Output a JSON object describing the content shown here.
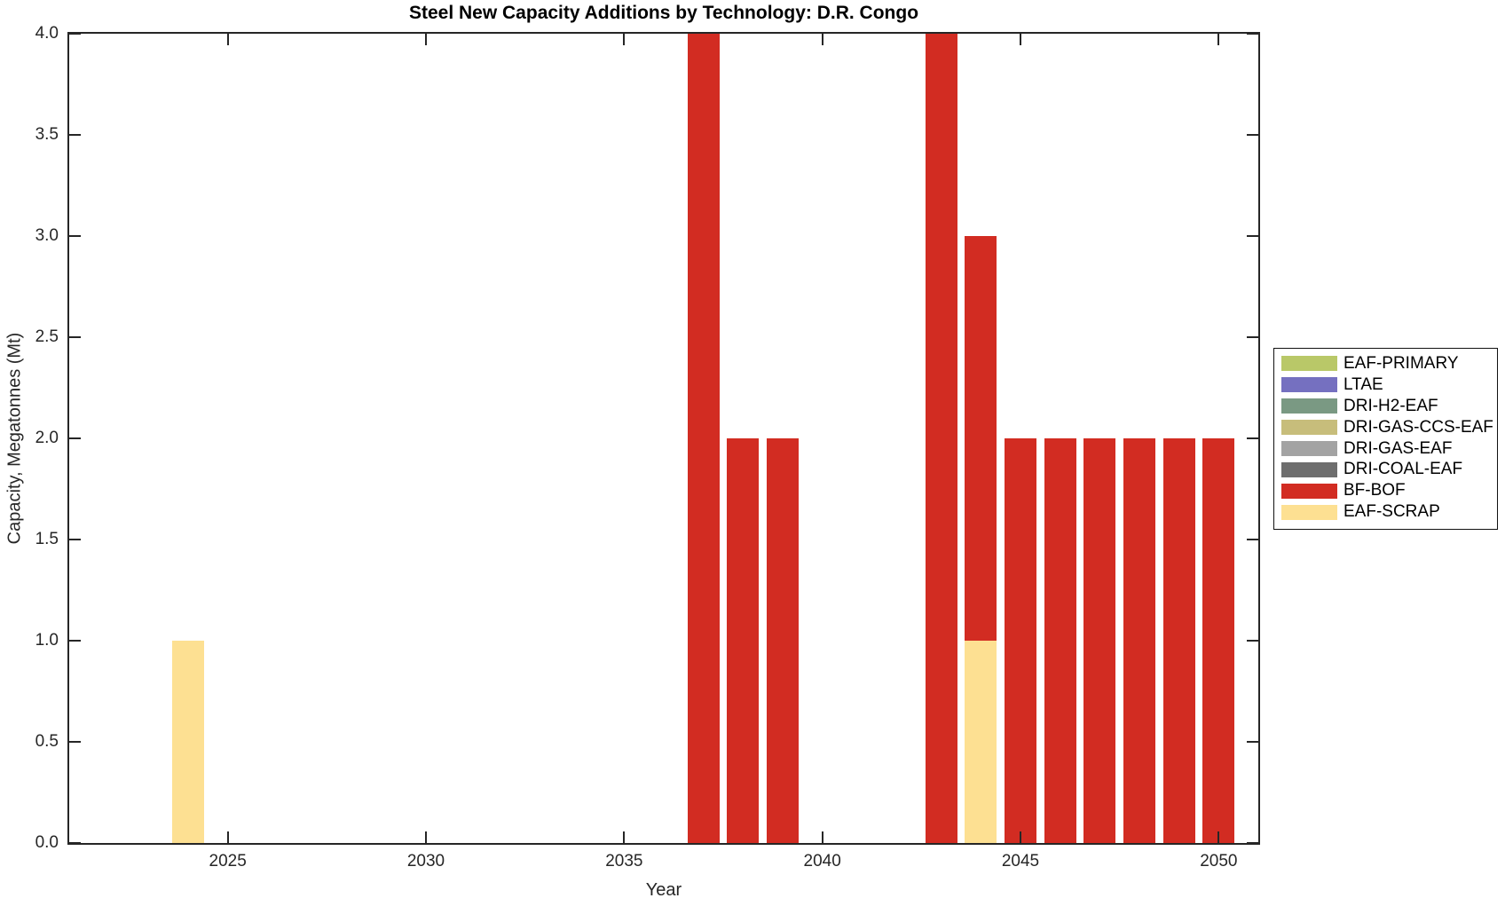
{
  "chart_data": {
    "type": "bar",
    "stacked": true,
    "title": "Steel New Capacity Additions by Technology: D.R. Congo",
    "xlabel": "Year",
    "ylabel": "Capacity, Megatonnes (Mt)",
    "xlim": [
      2021,
      2051
    ],
    "ylim": [
      0,
      4
    ],
    "grid": false,
    "legend_position": "right-outside",
    "bar_width_years": 0.8,
    "xtick_values": [
      2025,
      2030,
      2035,
      2040,
      2045,
      2050
    ],
    "xtick_labels": [
      "2025",
      "2030",
      "2035",
      "2040",
      "2045",
      "2050"
    ],
    "ytick_values": [
      0,
      0.5,
      1,
      1.5,
      2,
      2.5,
      3,
      3.5,
      4
    ],
    "ytick_labels": [
      "0.0",
      "0.5",
      "1.0",
      "1.5",
      "2.0",
      "2.5",
      "3.0",
      "3.5",
      "4.0"
    ],
    "legend": [
      "EAF-PRIMARY",
      "LTAE",
      "DRI-H2-EAF",
      "DRI-GAS-CCS-EAF",
      "DRI-GAS-EAF",
      "DRI-COAL-EAF",
      "BF-BOF",
      "EAF-SCRAP"
    ],
    "colors": {
      "EAF-PRIMARY": "#b9c868",
      "LTAE": "#7570c0",
      "DRI-H2-EAF": "#7a9983",
      "DRI-GAS-CCS-EAF": "#c7bd7b",
      "DRI-GAS-EAF": "#a3a3a3",
      "DRI-COAL-EAF": "#6e6e6e",
      "BF-BOF": "#d22c22",
      "EAF-SCRAP": "#fde092"
    },
    "axis_color": "#262626",
    "bars": [
      {
        "year": 2024,
        "segments": [
          {
            "tech": "EAF-SCRAP",
            "value": 1.0
          }
        ]
      },
      {
        "year": 2037,
        "segments": [
          {
            "tech": "BF-BOF",
            "value": 4.0
          }
        ]
      },
      {
        "year": 2038,
        "segments": [
          {
            "tech": "BF-BOF",
            "value": 2.0
          }
        ]
      },
      {
        "year": 2039,
        "segments": [
          {
            "tech": "BF-BOF",
            "value": 2.0
          }
        ]
      },
      {
        "year": 2043,
        "segments": [
          {
            "tech": "BF-BOF",
            "value": 4.0
          }
        ]
      },
      {
        "year": 2044,
        "segments": [
          {
            "tech": "EAF-SCRAP",
            "value": 1.0
          },
          {
            "tech": "BF-BOF",
            "value": 2.0
          }
        ]
      },
      {
        "year": 2045,
        "segments": [
          {
            "tech": "BF-BOF",
            "value": 2.0
          }
        ]
      },
      {
        "year": 2046,
        "segments": [
          {
            "tech": "BF-BOF",
            "value": 2.0
          }
        ]
      },
      {
        "year": 2047,
        "segments": [
          {
            "tech": "BF-BOF",
            "value": 2.0
          }
        ]
      },
      {
        "year": 2048,
        "segments": [
          {
            "tech": "BF-BOF",
            "value": 2.0
          }
        ]
      },
      {
        "year": 2049,
        "segments": [
          {
            "tech": "BF-BOF",
            "value": 2.0
          }
        ]
      },
      {
        "year": 2050,
        "segments": [
          {
            "tech": "BF-BOF",
            "value": 2.0
          }
        ]
      }
    ]
  }
}
